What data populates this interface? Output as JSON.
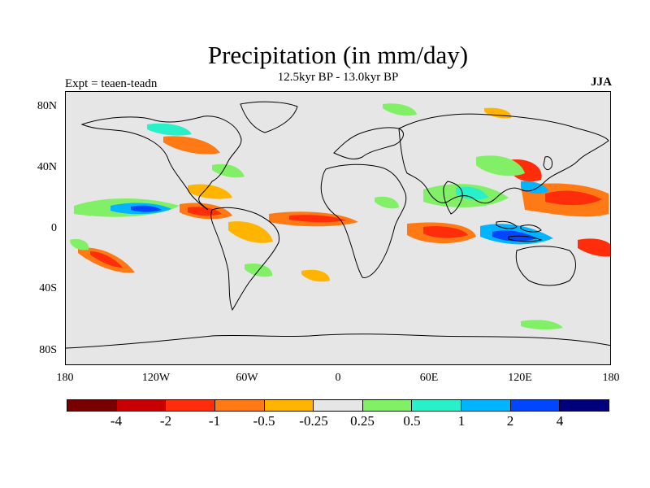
{
  "title": "Precipitation (in mm/day)",
  "subtitle": "12.5kyr BP - 13.0kyr BP",
  "left_label": "Expt = teaen-teadn",
  "season": "JJA",
  "lat_labels": [
    "80N",
    "40N",
    "0",
    "40S",
    "80S"
  ],
  "lon_labels": [
    "180",
    "120W",
    "60W",
    "0",
    "60E",
    "120E",
    "180"
  ],
  "colorbar": {
    "colors": [
      "#7a0000",
      "#c80000",
      "#ff2d0a",
      "#ff7a14",
      "#ffb400",
      "#e6e6e6",
      "#82f066",
      "#28f0c8",
      "#00b4ff",
      "#0046ff",
      "#00007a"
    ],
    "labels": [
      "-4",
      "-2",
      "-1",
      "-0.5",
      "-0.25",
      "0.25",
      "0.5",
      "1",
      "2",
      "4"
    ]
  }
}
